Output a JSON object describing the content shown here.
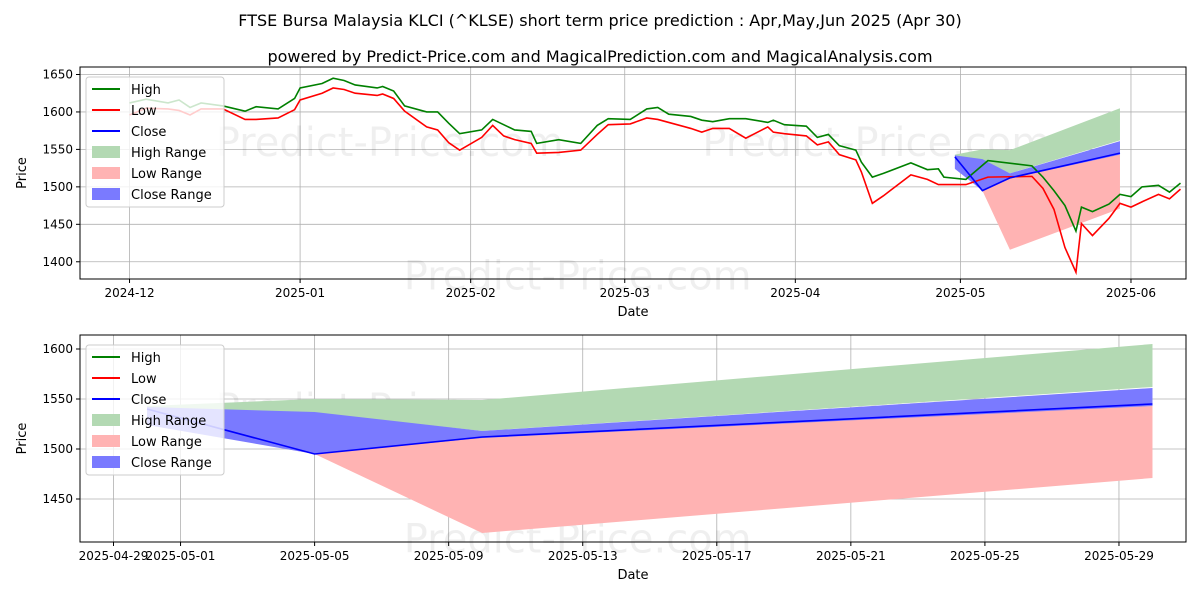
{
  "title": "FTSE Bursa Malaysia KLCI (^KLSE) short term price prediction : Apr,May,Jun 2025 (Apr 30)",
  "subtitle": "powered by Predict-Price.com and MagicalPrediction.com and MagicalAnalysis.com",
  "watermark": "Predict-Price.com",
  "colors": {
    "high": "#008000",
    "low": "#ff0000",
    "close": "#0000ff",
    "high_range": "#b3d9b3",
    "low_range": "#ffb3b3",
    "close_range": "#7a7aff"
  },
  "chart_data": [
    {
      "type": "line",
      "xlabel": "Date",
      "ylabel": "Price",
      "xlim": [
        "2024-11-22",
        "2025-06-11"
      ],
      "ylim": [
        1377,
        1660
      ],
      "x_ticks": [
        "2024-12",
        "2025-01",
        "2025-02",
        "2025-03",
        "2025-04",
        "2025-05",
        "2025-06"
      ],
      "y_ticks": [
        1400,
        1450,
        1500,
        1550,
        1600,
        1650
      ],
      "grid": true,
      "legend_position": "top-left",
      "legend": [
        "High",
        "Low",
        "Close",
        "High Range",
        "Low Range",
        "Close Range"
      ],
      "series": [
        {
          "name": "High",
          "points": [
            [
              "2024-12-01",
              1612
            ],
            [
              "2024-12-04",
              1617
            ],
            [
              "2024-12-08",
              1612
            ],
            [
              "2024-12-10",
              1616
            ],
            [
              "2024-12-12",
              1606
            ],
            [
              "2024-12-14",
              1612
            ],
            [
              "2024-12-18",
              1608
            ],
            [
              "2024-12-22",
              1601
            ],
            [
              "2024-12-24",
              1607
            ],
            [
              "2024-12-28",
              1604
            ],
            [
              "2024-12-31",
              1618
            ],
            [
              "2025-01-01",
              1632
            ],
            [
              "2025-01-05",
              1638
            ],
            [
              "2025-01-07",
              1645
            ],
            [
              "2025-01-09",
              1642
            ],
            [
              "2025-01-11",
              1636
            ],
            [
              "2025-01-15",
              1632
            ],
            [
              "2025-01-16",
              1634
            ],
            [
              "2025-01-18",
              1628
            ],
            [
              "2025-01-20",
              1608
            ],
            [
              "2025-01-24",
              1600
            ],
            [
              "2025-01-26",
              1600
            ],
            [
              "2025-01-28",
              1585
            ],
            [
              "2025-01-30",
              1571
            ],
            [
              "2025-02-03",
              1576
            ],
            [
              "2025-02-05",
              1590
            ],
            [
              "2025-02-07",
              1583
            ],
            [
              "2025-02-09",
              1576
            ],
            [
              "2025-02-12",
              1574
            ],
            [
              "2025-02-13",
              1558
            ],
            [
              "2025-02-17",
              1563
            ],
            [
              "2025-02-21",
              1558
            ],
            [
              "2025-02-24",
              1582
            ],
            [
              "2025-02-26",
              1591
            ],
            [
              "2025-03-02",
              1590
            ],
            [
              "2025-03-05",
              1604
            ],
            [
              "2025-03-07",
              1606
            ],
            [
              "2025-03-09",
              1597
            ],
            [
              "2025-03-13",
              1594
            ],
            [
              "2025-03-15",
              1589
            ],
            [
              "2025-03-17",
              1587
            ],
            [
              "2025-03-20",
              1591
            ],
            [
              "2025-03-23",
              1591
            ],
            [
              "2025-03-27",
              1586
            ],
            [
              "2025-03-28",
              1589
            ],
            [
              "2025-03-30",
              1583
            ],
            [
              "2025-04-03",
              1581
            ],
            [
              "2025-04-05",
              1566
            ],
            [
              "2025-04-07",
              1570
            ],
            [
              "2025-04-09",
              1555
            ],
            [
              "2025-04-12",
              1549
            ],
            [
              "2025-04-13",
              1533
            ],
            [
              "2025-04-15",
              1513
            ],
            [
              "2025-04-17",
              1518
            ],
            [
              "2025-04-22",
              1532
            ],
            [
              "2025-04-25",
              1523
            ],
            [
              "2025-04-27",
              1524
            ],
            [
              "2025-04-28",
              1513
            ],
            [
              "2025-05-02",
              1510
            ],
            [
              "2025-05-06",
              1535
            ],
            [
              "2025-05-14",
              1528
            ],
            [
              "2025-05-16",
              1513
            ],
            [
              "2025-05-18",
              1495
            ],
            [
              "2025-05-20",
              1475
            ],
            [
              "2025-05-22",
              1441
            ],
            [
              "2025-05-23",
              1473
            ],
            [
              "2025-05-25",
              1467
            ],
            [
              "2025-05-28",
              1477
            ],
            [
              "2025-05-30",
              1490
            ],
            [
              "2025-06-01",
              1487
            ],
            [
              "2025-06-03",
              1500
            ],
            [
              "2025-06-06",
              1502
            ],
            [
              "2025-06-08",
              1493
            ],
            [
              "2025-06-10",
              1505
            ]
          ]
        },
        {
          "name": "Low",
          "points": [
            [
              "2024-12-01",
              1596
            ],
            [
              "2024-12-04",
              1605
            ],
            [
              "2024-12-08",
              1604
            ],
            [
              "2024-12-10",
              1602
            ],
            [
              "2024-12-12",
              1596
            ],
            [
              "2024-12-14",
              1604
            ],
            [
              "2024-12-18",
              1604
            ],
            [
              "2024-12-22",
              1590
            ],
            [
              "2024-12-24",
              1590
            ],
            [
              "2024-12-28",
              1592
            ],
            [
              "2024-12-31",
              1603
            ],
            [
              "2025-01-01",
              1616
            ],
            [
              "2025-01-05",
              1625
            ],
            [
              "2025-01-07",
              1632
            ],
            [
              "2025-01-09",
              1630
            ],
            [
              "2025-01-11",
              1625
            ],
            [
              "2025-01-15",
              1622
            ],
            [
              "2025-01-16",
              1624
            ],
            [
              "2025-01-18",
              1618
            ],
            [
              "2025-01-20",
              1601
            ],
            [
              "2025-01-24",
              1580
            ],
            [
              "2025-01-26",
              1576
            ],
            [
              "2025-01-28",
              1559
            ],
            [
              "2025-01-30",
              1549
            ],
            [
              "2025-02-03",
              1566
            ],
            [
              "2025-02-05",
              1582
            ],
            [
              "2025-02-07",
              1568
            ],
            [
              "2025-02-09",
              1563
            ],
            [
              "2025-02-12",
              1558
            ],
            [
              "2025-02-13",
              1545
            ],
            [
              "2025-02-17",
              1546
            ],
            [
              "2025-02-21",
              1549
            ],
            [
              "2025-02-24",
              1570
            ],
            [
              "2025-02-26",
              1583
            ],
            [
              "2025-03-02",
              1584
            ],
            [
              "2025-03-05",
              1592
            ],
            [
              "2025-03-07",
              1590
            ],
            [
              "2025-03-09",
              1586
            ],
            [
              "2025-03-13",
              1578
            ],
            [
              "2025-03-15",
              1573
            ],
            [
              "2025-03-17",
              1578
            ],
            [
              "2025-03-20",
              1578
            ],
            [
              "2025-03-23",
              1565
            ],
            [
              "2025-03-27",
              1580
            ],
            [
              "2025-03-28",
              1573
            ],
            [
              "2025-03-30",
              1571
            ],
            [
              "2025-04-03",
              1568
            ],
            [
              "2025-04-05",
              1556
            ],
            [
              "2025-04-07",
              1560
            ],
            [
              "2025-04-09",
              1543
            ],
            [
              "2025-04-12",
              1536
            ],
            [
              "2025-04-13",
              1520
            ],
            [
              "2025-04-15",
              1478
            ],
            [
              "2025-04-17",
              1488
            ],
            [
              "2025-04-22",
              1516
            ],
            [
              "2025-04-25",
              1510
            ],
            [
              "2025-04-27",
              1503
            ],
            [
              "2025-04-28",
              1503
            ],
            [
              "2025-05-02",
              1503
            ],
            [
              "2025-05-06",
              1513
            ],
            [
              "2025-05-14",
              1514
            ],
            [
              "2025-05-16",
              1498
            ],
            [
              "2025-05-18",
              1470
            ],
            [
              "2025-05-20",
              1419
            ],
            [
              "2025-05-22",
              1386
            ],
            [
              "2025-05-23",
              1451
            ],
            [
              "2025-05-25",
              1435
            ],
            [
              "2025-05-28",
              1458
            ],
            [
              "2025-05-30",
              1478
            ],
            [
              "2025-06-01",
              1473
            ],
            [
              "2025-06-03",
              1480
            ],
            [
              "2025-06-06",
              1490
            ],
            [
              "2025-06-08",
              1484
            ],
            [
              "2025-06-10",
              1497
            ]
          ]
        },
        {
          "name": "Close",
          "points": []
        },
        {
          "name": "High Range",
          "points": []
        },
        {
          "name": "Low Range",
          "points": []
        },
        {
          "name": "Close Range",
          "points": []
        }
      ]
    },
    {
      "type": "area",
      "xlabel": "Date",
      "ylabel": "Price",
      "xlim": [
        "2025-04-28",
        "2025-05-31"
      ],
      "ylim": [
        1407,
        1614
      ],
      "x_ticks": [
        "2025-04-29",
        "2025-05-01",
        "2025-05-05",
        "2025-05-09",
        "2025-05-13",
        "2025-05-17",
        "2025-05-21",
        "2025-05-25",
        "2025-05-29"
      ],
      "y_ticks": [
        1450,
        1500,
        1550,
        1600
      ],
      "grid": true,
      "legend_position": "top-left",
      "legend": [
        "High",
        "Low",
        "Close",
        "High Range",
        "Low Range",
        "Close Range"
      ],
      "x": [
        "2025-04-30",
        "2025-05-05",
        "2025-05-10",
        "2025-05-30"
      ],
      "series": [
        {
          "name": "Close",
          "values": [
            1540,
            1495,
            1512,
            1545
          ]
        },
        {
          "name": "High Range",
          "upper": [
            1543,
            1550,
            1549,
            1605
          ],
          "lower": [
            1530,
            1536,
            1518,
            1562
          ]
        },
        {
          "name": "Low Range",
          "upper": [
            1530,
            1497,
            1517,
            1543
          ],
          "lower": [
            1525,
            1495,
            1416,
            1471
          ]
        },
        {
          "name": "Close Range",
          "upper": [
            1542,
            1537,
            1518,
            1561
          ],
          "lower": [
            1524,
            1495,
            1511,
            1543
          ]
        }
      ]
    }
  ]
}
